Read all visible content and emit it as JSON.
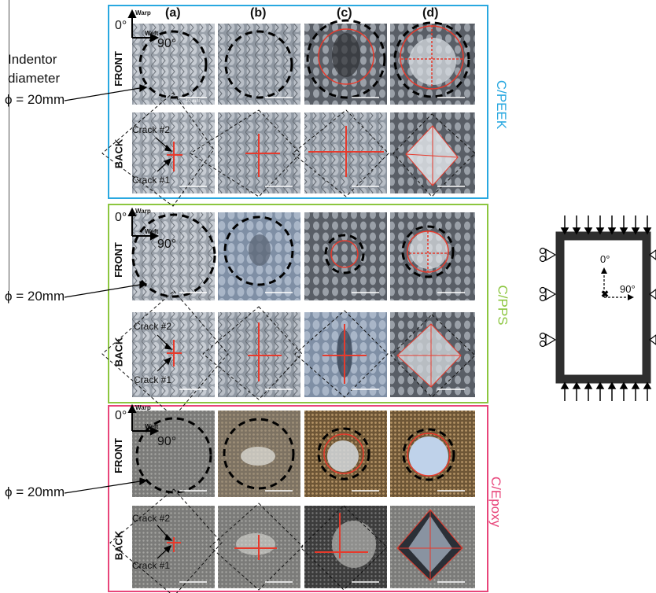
{
  "columns": [
    "(a)",
    "(b)",
    "(c)",
    "(d)"
  ],
  "rows": [
    "FRONT",
    "BACK"
  ],
  "angle_label": "0°",
  "angle90_label": "90°",
  "warp_label": "Warp",
  "weft_label": "Weft",
  "crack2": "Crack #2",
  "crack1": "Crack #1",
  "scalebar": "10 mm",
  "indentor_line1": "Indentor",
  "indentor_line2": "diameter",
  "phi_label": "ϕ = 20mm",
  "materials": [
    {
      "name": "C/PEEK",
      "color": "#29a8e0"
    },
    {
      "name": "C/PPS",
      "color": "#8cc63f"
    },
    {
      "name": "C/Epoxy",
      "color": "#e8457a"
    }
  ],
  "schematic": {
    "axis0": "0°",
    "axis90": "90°"
  }
}
